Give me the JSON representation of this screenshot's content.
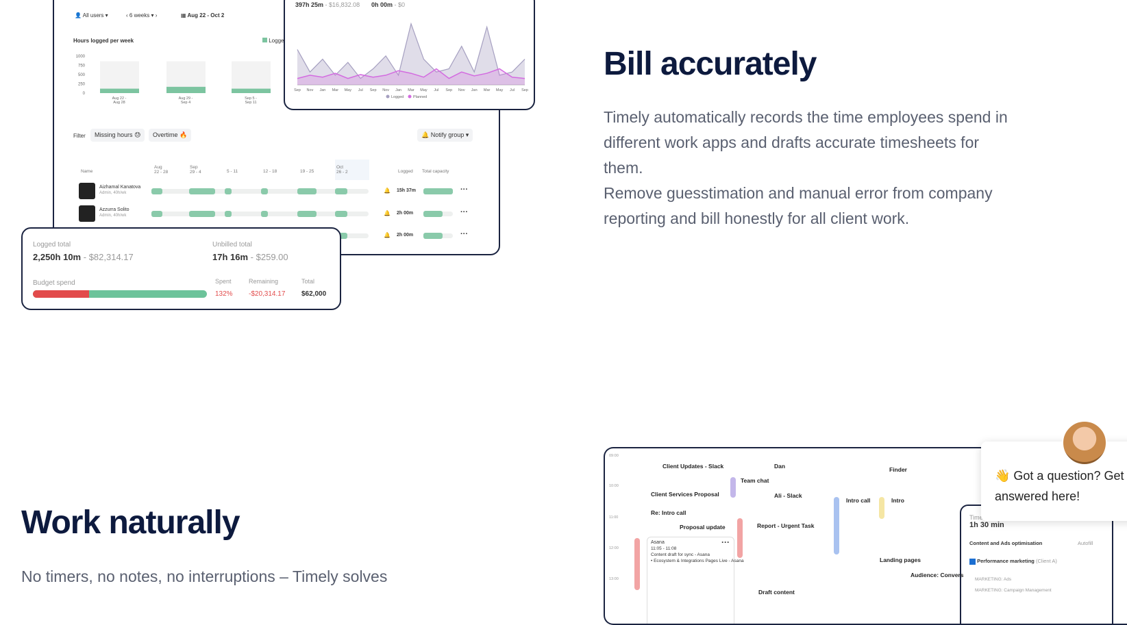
{
  "bill": {
    "title": "Bill accurately",
    "paragraphs": [
      "Timely automatically records the time employees spend in different work apps and drafts accurate timesheets for them.",
      "Remove guesstimation and manual error from company reporting and bill honestly for all client work."
    ]
  },
  "work": {
    "title": "Work naturally",
    "text": "No timers, no notes, no interruptions – Timely solves"
  },
  "report": {
    "filters": [
      "All users",
      "6 weeks",
      "Aug 22 - Oct 2"
    ],
    "chart_data": {
      "type": "bar",
      "title": "Hours logged per week",
      "legend": "Logged",
      "color": "#7cc4a0",
      "categories": [
        "Aug 22 -\nAug 28",
        "Aug 29 -\nSep 4",
        "Sep 5 -\nSep 11"
      ],
      "values": [
        120,
        170,
        120
      ],
      "ylim": [
        0,
        1000
      ],
      "yticks": [
        1000,
        750,
        500,
        250,
        0
      ]
    },
    "filter_label": "Filter",
    "chips": [
      "Missing hours 😓",
      "Overtime 🔥"
    ],
    "notify": "Notify group",
    "columns": [
      "Name",
      "Aug\n22 - 28",
      "Sep\n29 - 4",
      "5 - 11",
      "12 - 18",
      "19 - 25",
      "Oct\n26 - 2",
      "Logged",
      "Total capacity"
    ],
    "rows": [
      {
        "name": "Aizhamal Kanatova",
        "role": "Admin, 40h/wk",
        "logged": "15h 37m"
      },
      {
        "name": "Azzurra Solito",
        "role": "Admin, 40h/wk",
        "logged": "2h 00m"
      },
      {
        "logged": "2h 00m"
      }
    ]
  },
  "trend": {
    "stats": [
      "397h 25m",
      "$16,832.08",
      "0h 00m",
      "$0"
    ],
    "chart_data": {
      "type": "line",
      "categories": [
        "Sep",
        "Nov",
        "Jan",
        "Mar",
        "May",
        "Jul",
        "Sep",
        "Nov",
        "Jan",
        "Mar",
        "May",
        "Jul",
        "Sep",
        "Nov",
        "Jan",
        "Mar",
        "May",
        "Jul",
        "Sep"
      ],
      "ylim": [
        0,
        100
      ],
      "series": [
        {
          "name": "Logged",
          "color": "#a59fc0",
          "values": [
            55,
            20,
            40,
            15,
            35,
            10,
            25,
            45,
            15,
            95,
            40,
            20,
            25,
            60,
            20,
            90,
            15,
            20,
            40
          ]
        },
        {
          "name": "Planned",
          "color": "#d36be0",
          "values": [
            10,
            15,
            12,
            18,
            10,
            16,
            12,
            15,
            22,
            18,
            12,
            25,
            10,
            20,
            14,
            18,
            25,
            12,
            10
          ]
        }
      ]
    }
  },
  "totals": {
    "logged_label": "Logged total",
    "logged": "2,250h 10m",
    "logged_money": "$82,314.17",
    "unbilled_label": "Unbilled total",
    "unbilled": "17h 16m",
    "unbilled_money": "$259.00",
    "budget_label": "Budget spend",
    "spent_label": "Spent",
    "spent": "132%",
    "remaining_label": "Remaining",
    "remaining": "-$20,314.17",
    "total_label": "Total",
    "total": "$62,000"
  },
  "calendar": {
    "times": [
      "09:00",
      "10:00",
      "11:00",
      "12:00",
      "13:00"
    ],
    "events": [
      "Client Updates - Slack",
      "Dan",
      "Finder",
      "Team chat",
      "Client Services Proposal",
      "Ali - Slack",
      "Intro call",
      "Intro",
      "Re: Intro call",
      "Proposal update",
      "Report - Urgent Task",
      "Landing pages",
      "Audience: Convers",
      "Draft content"
    ],
    "asana": {
      "title": "Asana",
      "time": "11:05 - 11:08",
      "lines": [
        "Content draft for sync - Asana",
        "• Ecosystem & Integrations Pages Live - Asana"
      ]
    },
    "panel": {
      "label": "Time",
      "duration": "1h 30 min",
      "project": "Content and Ads optimisation",
      "autofill": "Autofill",
      "task": "Performance marketing",
      "client": "(Client A)",
      "tags": [
        "MARKETING: Ads",
        "MARKETING: Campaign Management"
      ]
    }
  },
  "chat": {
    "line1": "👋 Got a question? Get it",
    "line2": "answered here!"
  }
}
